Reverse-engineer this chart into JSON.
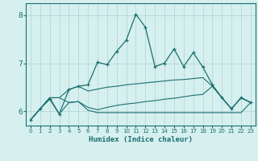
{
  "title": "",
  "xlabel": "Humidex (Indice chaleur)",
  "background_color": "#d6efef",
  "grid_color": "#afd4d4",
  "line_color": "#1a7070",
  "xlim": [
    -0.5,
    23.5
  ],
  "ylim": [
    5.7,
    8.25
  ],
  "yticks": [
    6,
    7,
    8
  ],
  "xticks": [
    0,
    1,
    2,
    3,
    4,
    5,
    6,
    7,
    8,
    9,
    10,
    11,
    12,
    13,
    14,
    15,
    16,
    17,
    18,
    19,
    20,
    21,
    22,
    23
  ],
  "line1_x": [
    0,
    1,
    2,
    3,
    4,
    5,
    6,
    7,
    8,
    9,
    10,
    11,
    12,
    13,
    14,
    15,
    16,
    17,
    18,
    19,
    20,
    21,
    22,
    23
  ],
  "line1_y": [
    5.82,
    6.05,
    6.25,
    5.94,
    6.45,
    6.52,
    6.55,
    7.02,
    6.97,
    7.25,
    7.48,
    8.02,
    7.75,
    6.93,
    7.0,
    7.3,
    6.93,
    7.22,
    6.92,
    6.55,
    6.28,
    6.05,
    6.28,
    6.18
  ],
  "line2_x": [
    0,
    1,
    2,
    3,
    4,
    5,
    6,
    7,
    8,
    9,
    10,
    11,
    12,
    13,
    14,
    15,
    16,
    17,
    18,
    19,
    20,
    21,
    22,
    23
  ],
  "line2_y": [
    5.82,
    6.05,
    6.28,
    6.28,
    6.45,
    6.52,
    6.42,
    6.46,
    6.5,
    6.52,
    6.55,
    6.57,
    6.59,
    6.61,
    6.63,
    6.65,
    6.66,
    6.68,
    6.7,
    6.52,
    6.28,
    6.05,
    6.28,
    6.18
  ],
  "line3_x": [
    0,
    1,
    2,
    3,
    4,
    5,
    6,
    7,
    8,
    9,
    10,
    11,
    12,
    13,
    14,
    15,
    16,
    17,
    18,
    19,
    20,
    21,
    22,
    23
  ],
  "line3_y": [
    5.82,
    6.05,
    6.28,
    6.28,
    6.18,
    6.2,
    6.02,
    5.97,
    5.97,
    5.97,
    5.97,
    5.97,
    5.97,
    5.97,
    5.97,
    5.97,
    5.97,
    5.97,
    5.97,
    5.97,
    5.97,
    5.97,
    5.97,
    6.18
  ],
  "line4_x": [
    0,
    1,
    2,
    3,
    4,
    5,
    6,
    7,
    8,
    9,
    10,
    11,
    12,
    13,
    14,
    15,
    16,
    17,
    18,
    19,
    20,
    21,
    22,
    23
  ],
  "line4_y": [
    5.82,
    6.05,
    6.28,
    5.94,
    6.18,
    6.2,
    6.08,
    6.03,
    6.08,
    6.12,
    6.15,
    6.17,
    6.2,
    6.22,
    6.25,
    6.27,
    6.3,
    6.33,
    6.35,
    6.52,
    6.28,
    6.05,
    6.28,
    6.18
  ]
}
